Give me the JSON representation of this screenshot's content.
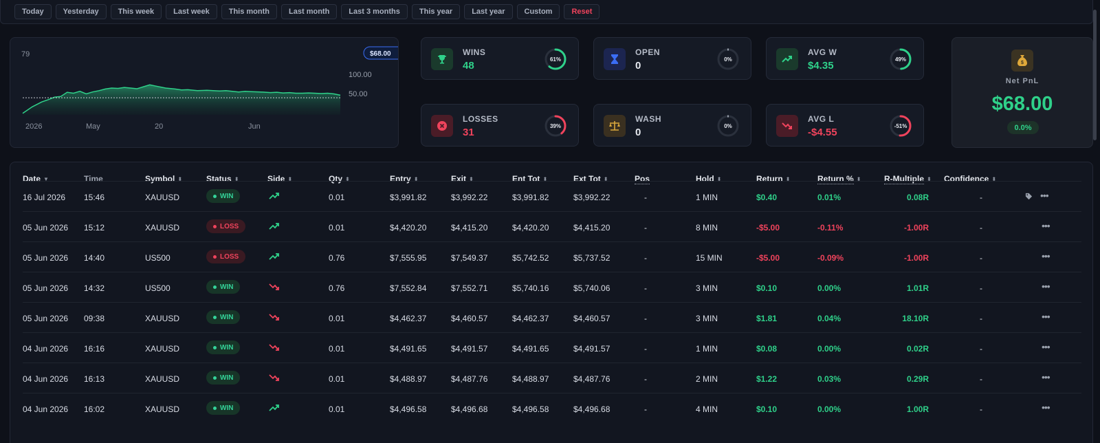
{
  "ranges": [
    "Today",
    "Yesterday",
    "This week",
    "Last week",
    "This month",
    "Last month",
    "Last 3 months",
    "This year",
    "Last year",
    "Custom",
    "Reset"
  ],
  "equity_chart": {
    "type": "area",
    "yaxis_ticks": [
      "100.00",
      "50.00"
    ],
    "top_value": "79",
    "current_value": "$68.00",
    "xaxis_ticks": [
      "2026",
      "May",
      "20",
      "Jun"
    ],
    "x": [
      0,
      3,
      6,
      8,
      10,
      12,
      14,
      16,
      18,
      20,
      22,
      24,
      26,
      28,
      30,
      32,
      34,
      36,
      38,
      40,
      42,
      45,
      48,
      50,
      52,
      55,
      58,
      60,
      62,
      64,
      66,
      68,
      70,
      72,
      75,
      78,
      80,
      82,
      84,
      86,
      88,
      90,
      92,
      94,
      96,
      98,
      100
    ],
    "values": [
      20,
      40,
      55,
      62,
      70,
      72,
      85,
      82,
      88,
      80,
      86,
      90,
      95,
      98,
      97,
      100,
      98,
      96,
      102,
      108,
      104,
      98,
      95,
      92,
      93,
      90,
      91,
      90,
      89,
      90,
      88,
      86,
      88,
      87,
      86,
      84,
      85,
      83,
      84,
      82,
      82,
      83,
      82,
      81,
      82,
      80,
      76
    ],
    "ylim": [
      15,
      130
    ],
    "baseline": 68
  },
  "stats": {
    "wins": {
      "label": "WINS",
      "value": "48",
      "pct": 61,
      "pct_label": "61%",
      "color": "#2fd18a",
      "icon": "trophy-icon"
    },
    "open": {
      "label": "OPEN",
      "value": "0",
      "pct": 0,
      "pct_label": "0%",
      "color": "#3b6df5",
      "icon": "hourglass-icon"
    },
    "avgw": {
      "label": "AVG W",
      "value": "$4.35",
      "pct": 49,
      "pct_label": "49%",
      "color": "#2fd18a",
      "icon": "trend-up-icon"
    },
    "losses": {
      "label": "LOSSES",
      "value": "31",
      "pct": 39,
      "pct_label": "39%",
      "color": "#f0435c",
      "icon": "x-circle-icon"
    },
    "wash": {
      "label": "WASH",
      "value": "0",
      "pct": 0,
      "pct_label": "0%",
      "color": "#d9a73c",
      "icon": "scale-icon"
    },
    "avgl": {
      "label": "AVG L",
      "value": "-$4.55",
      "pct": 51,
      "pct_label": "-51%",
      "color": "#f0435c",
      "icon": "trend-down-icon"
    }
  },
  "net": {
    "label": "Net PnL",
    "value": "$68.00",
    "pct": "0.0%"
  },
  "table": {
    "headers": [
      "Date",
      "Time",
      "Symbol",
      "Status",
      "Side",
      "Qty",
      "Entry",
      "Exit",
      "Ent Tot",
      "Ext Tot",
      "Pos",
      "Hold",
      "Return",
      "Return %",
      "R-Multiple",
      "Confidence"
    ],
    "rows": [
      {
        "date": "16 Jul 2026",
        "time": "15:46",
        "symbol": "XAUUSD",
        "status": "WIN",
        "side": "up",
        "qty": "0.01",
        "entry": "$3,991.82",
        "exit": "$3,992.22",
        "ent_tot": "$3,991.82",
        "ext_tot": "$3,992.22",
        "pos": "-",
        "hold": "1 MIN",
        "ret": "$0.40",
        "ret_pct": "0.01%",
        "r_mult": "0.08R",
        "conf": "-",
        "tag": true
      },
      {
        "date": "05 Jun 2026",
        "time": "15:12",
        "symbol": "XAUUSD",
        "status": "LOSS",
        "side": "up",
        "qty": "0.01",
        "entry": "$4,420.20",
        "exit": "$4,415.20",
        "ent_tot": "$4,420.20",
        "ext_tot": "$4,415.20",
        "pos": "-",
        "hold": "8 MIN",
        "ret": "-$5.00",
        "ret_pct": "-0.11%",
        "r_mult": "-1.00R",
        "conf": "-",
        "tag": false
      },
      {
        "date": "05 Jun 2026",
        "time": "14:40",
        "symbol": "US500",
        "status": "LOSS",
        "side": "up",
        "qty": "0.76",
        "entry": "$7,555.95",
        "exit": "$7,549.37",
        "ent_tot": "$5,742.52",
        "ext_tot": "$5,737.52",
        "pos": "-",
        "hold": "15 MIN",
        "ret": "-$5.00",
        "ret_pct": "-0.09%",
        "r_mult": "-1.00R",
        "conf": "-",
        "tag": false
      },
      {
        "date": "05 Jun 2026",
        "time": "14:32",
        "symbol": "US500",
        "status": "WIN",
        "side": "down",
        "qty": "0.76",
        "entry": "$7,552.84",
        "exit": "$7,552.71",
        "ent_tot": "$5,740.16",
        "ext_tot": "$5,740.06",
        "pos": "-",
        "hold": "3 MIN",
        "ret": "$0.10",
        "ret_pct": "0.00%",
        "r_mult": "1.01R",
        "conf": "-",
        "tag": false
      },
      {
        "date": "05 Jun 2026",
        "time": "09:38",
        "symbol": "XAUUSD",
        "status": "WIN",
        "side": "down",
        "qty": "0.01",
        "entry": "$4,462.37",
        "exit": "$4,460.57",
        "ent_tot": "$4,462.37",
        "ext_tot": "$4,460.57",
        "pos": "-",
        "hold": "3 MIN",
        "ret": "$1.81",
        "ret_pct": "0.04%",
        "r_mult": "18.10R",
        "conf": "-",
        "tag": false
      },
      {
        "date": "04 Jun 2026",
        "time": "16:16",
        "symbol": "XAUUSD",
        "status": "WIN",
        "side": "down",
        "qty": "0.01",
        "entry": "$4,491.65",
        "exit": "$4,491.57",
        "ent_tot": "$4,491.65",
        "ext_tot": "$4,491.57",
        "pos": "-",
        "hold": "1 MIN",
        "ret": "$0.08",
        "ret_pct": "0.00%",
        "r_mult": "0.02R",
        "conf": "-",
        "tag": false
      },
      {
        "date": "04 Jun 2026",
        "time": "16:13",
        "symbol": "XAUUSD",
        "status": "WIN",
        "side": "down",
        "qty": "0.01",
        "entry": "$4,488.97",
        "exit": "$4,487.76",
        "ent_tot": "$4,488.97",
        "ext_tot": "$4,487.76",
        "pos": "-",
        "hold": "2 MIN",
        "ret": "$1.22",
        "ret_pct": "0.03%",
        "r_mult": "0.29R",
        "conf": "-",
        "tag": false
      },
      {
        "date": "04 Jun 2026",
        "time": "16:02",
        "symbol": "XAUUSD",
        "status": "WIN",
        "side": "up",
        "qty": "0.01",
        "entry": "$4,496.58",
        "exit": "$4,496.68",
        "ent_tot": "$4,496.58",
        "ext_tot": "$4,496.68",
        "pos": "-",
        "hold": "4 MIN",
        "ret": "$0.10",
        "ret_pct": "0.00%",
        "r_mult": "1.00R",
        "conf": "-",
        "tag": false
      }
    ]
  },
  "colors": {
    "green": "#2fd18a",
    "red": "#f0435c",
    "blue": "#3b6df5",
    "gold": "#d9a73c"
  }
}
